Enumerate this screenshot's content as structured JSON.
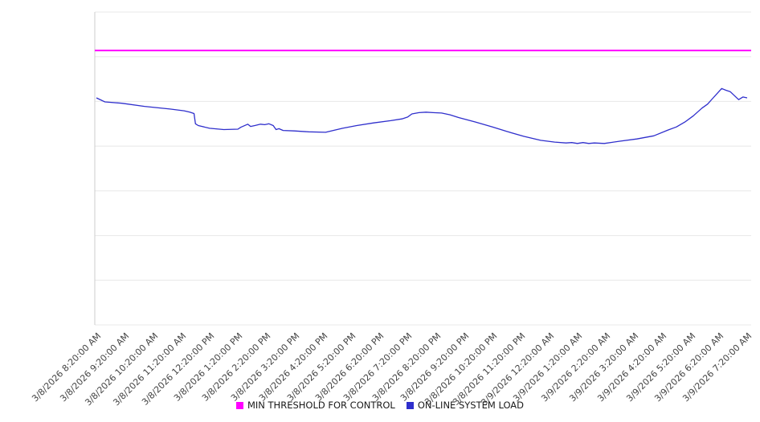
{
  "chart_data": {
    "type": "line",
    "title": "",
    "xlabel": "",
    "ylabel": "",
    "ylim": [
      0,
      70
    ],
    "grid_step": 10,
    "grid_on": true,
    "legend_position": "bottom-center",
    "colors": {
      "grid": "#e8e8e8",
      "axis": "#cccccc",
      "tick_text": "#444444",
      "background": "#ffffff"
    },
    "x_categories": [
      "3/8/2026 8:20:00 AM",
      "3/8/2026 9:20:00 AM",
      "3/8/2026 10:20:00 AM",
      "3/8/2026 11:20:00 AM",
      "3/8/2026 12:20:00 PM",
      "3/8/2026 1:20:00 PM",
      "3/8/2026 2:20:00 PM",
      "3/8/2026 3:20:00 PM",
      "3/8/2026 4:20:00 PM",
      "3/8/2026 5:20:00 PM",
      "3/8/2026 6:20:00 PM",
      "3/8/2026 7:20:00 PM",
      "3/8/2026 8:20:00 PM",
      "3/8/2026 9:20:00 PM",
      "3/8/2026 10:20:00 PM",
      "3/8/2026 11:20:00 PM",
      "3/9/2026 12:20:00 AM",
      "3/9/2026 1:20:00 AM",
      "3/9/2026 2:20:00 AM",
      "3/9/2026 3:20:00 AM",
      "3/9/2026 4:20:00 AM",
      "3/9/2026 5:20:00 AM",
      "3/9/2026 6:20:00 AM",
      "3/9/2026 7:20:00 AM"
    ],
    "series": [
      {
        "name": "MIN THRESHOLD FOR CONTROL",
        "kind": "threshold",
        "color": "#ff00ff",
        "value": 61.4
      },
      {
        "name": "ON-LINE SYSTEM LOAD",
        "kind": "line",
        "color": "#2e2ecc",
        "x": [
          0,
          0.3,
          0.9,
          1.7,
          2.6,
          3.1,
          3.3,
          3.45,
          3.5,
          3.6,
          4.0,
          4.5,
          5.0,
          5.1,
          5.35,
          5.45,
          5.6,
          5.8,
          5.95,
          6.1,
          6.25,
          6.35,
          6.45,
          6.6,
          7.0,
          7.5,
          8.1,
          8.7,
          9.2,
          9.8,
          10.4,
          10.8,
          11.0,
          11.15,
          11.4,
          11.65,
          11.9,
          12.2,
          12.5,
          12.8,
          13.4,
          14.0,
          14.5,
          15.1,
          15.7,
          16.2,
          16.6,
          16.8,
          17.0,
          17.2,
          17.4,
          17.6,
          17.95,
          18.5,
          19.1,
          19.7,
          20.2,
          20.5,
          20.8,
          21.1,
          21.4,
          21.6,
          21.8,
          22.1,
          22.25,
          22.4,
          22.7,
          22.85,
          23.0
        ],
        "values": [
          50.8,
          49.9,
          49.6,
          48.9,
          48.3,
          47.9,
          47.6,
          47.3,
          45.0,
          44.6,
          44.0,
          43.7,
          43.8,
          44.2,
          44.9,
          44.4,
          44.6,
          44.9,
          44.8,
          45.0,
          44.6,
          43.7,
          43.9,
          43.5,
          43.4,
          43.2,
          43.1,
          44.0,
          44.6,
          45.2,
          45.7,
          46.1,
          46.5,
          47.2,
          47.5,
          47.6,
          47.5,
          47.4,
          47.0,
          46.4,
          45.4,
          44.3,
          43.3,
          42.2,
          41.3,
          40.9,
          40.7,
          40.8,
          40.6,
          40.8,
          40.6,
          40.7,
          40.6,
          41.1,
          41.6,
          42.3,
          43.6,
          44.3,
          45.4,
          46.8,
          48.5,
          49.4,
          50.8,
          52.9,
          52.5,
          52.2,
          50.4,
          51.0,
          50.8
        ]
      }
    ]
  }
}
